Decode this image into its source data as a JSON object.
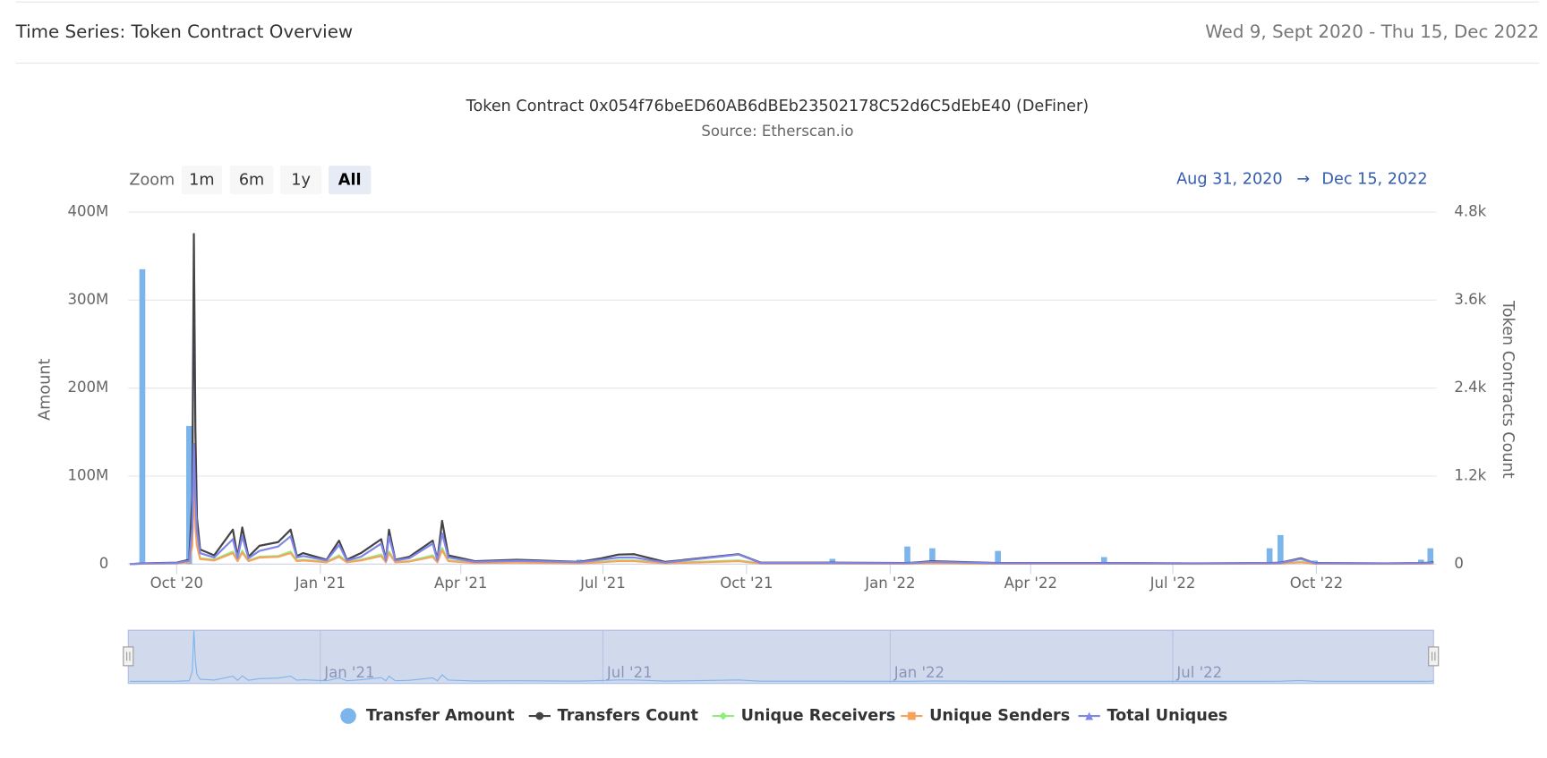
{
  "header": {
    "title": "Time Series: Token Contract Overview",
    "date_range": "Wed 9, Sept 2020 - Thu 15, Dec 2022"
  },
  "zoom": {
    "label": "Zoom",
    "buttons": [
      "1m",
      "6m",
      "1y",
      "All"
    ],
    "selected": "All"
  },
  "range": {
    "from": "Aug 31, 2020",
    "arrow": "→",
    "to": "Dec 15, 2022"
  },
  "navigator": {
    "ticks": [
      {
        "value": "2021-01-01",
        "label": "Jan '21"
      },
      {
        "value": "2021-07-01",
        "label": "Jul '21"
      },
      {
        "value": "2022-01-01",
        "label": "Jan '22"
      },
      {
        "value": "2022-07-01",
        "label": "Jul '22"
      }
    ]
  },
  "chart_data": {
    "type": "bar-line",
    "title": "Token Contract 0x054f76beED60AB6dBEb23502178C52d6C5dEbE40 (DeFiner)",
    "subtitle": "Source: Etherscan.io",
    "y_label": "Amount",
    "y2_label": "Token Contracts Count",
    "grid": true,
    "xlim": [
      "2020-08-31",
      "2022-12-15"
    ],
    "xticks": [
      {
        "value": "2020-10-01",
        "label": "Oct '20"
      },
      {
        "value": "2021-01-01",
        "label": "Jan '21"
      },
      {
        "value": "2021-04-01",
        "label": "Apr '21"
      },
      {
        "value": "2021-07-01",
        "label": "Jul '21"
      },
      {
        "value": "2021-10-01",
        "label": "Oct '21"
      },
      {
        "value": "2022-01-01",
        "label": "Jan '22"
      },
      {
        "value": "2022-04-01",
        "label": "Apr '22"
      },
      {
        "value": "2022-07-01",
        "label": "Jul '22"
      },
      {
        "value": "2022-10-01",
        "label": "Oct '22"
      }
    ],
    "ylim": [
      0,
      400000000
    ],
    "yticks": [
      0,
      {
        "value": 100000000,
        "label": "100M"
      },
      {
        "value": 200000000,
        "label": "200M"
      },
      {
        "value": 300000000,
        "label": "300M"
      },
      {
        "value": 400000000,
        "label": "400M"
      }
    ],
    "y2lim": [
      0,
      4800
    ],
    "y2ticks": [
      0,
      {
        "value": 1200,
        "label": "1.2k"
      },
      {
        "value": 2400,
        "label": "2.4k"
      },
      {
        "value": 3600,
        "label": "3.6k"
      },
      {
        "value": 4800,
        "label": "4.8k"
      }
    ],
    "x": [
      "2020-09-01",
      "2020-09-09",
      "2020-10-01",
      "2020-10-09",
      "2020-10-11",
      "2020-10-12",
      "2020-10-13",
      "2020-10-14",
      "2020-10-16",
      "2020-10-25",
      "2020-11-06",
      "2020-11-09",
      "2020-11-12",
      "2020-11-16",
      "2020-11-23",
      "2020-12-05",
      "2020-12-13",
      "2020-12-17",
      "2020-12-21",
      "2021-01-05",
      "2021-01-13",
      "2021-01-18",
      "2021-01-27",
      "2021-02-09",
      "2021-02-12",
      "2021-02-14",
      "2021-02-18",
      "2021-02-27",
      "2021-03-14",
      "2021-03-17",
      "2021-03-20",
      "2021-03-24",
      "2021-04-10",
      "2021-05-07",
      "2021-06-16",
      "2021-06-30",
      "2021-07-11",
      "2021-07-21",
      "2021-08-10",
      "2021-09-26",
      "2021-10-10",
      "2021-11-25",
      "2022-01-12",
      "2022-01-28",
      "2022-03-11",
      "2022-05-18",
      "2022-07-15",
      "2022-09-01",
      "2022-09-08",
      "2022-09-21",
      "2022-09-30",
      "2022-11-15",
      "2022-12-07",
      "2022-12-13",
      "2022-12-15"
    ],
    "series": [
      {
        "name": "Transfer Amount",
        "type": "bar",
        "axis": "y",
        "color": "#7cb5ec",
        "values": [
          null,
          335000000,
          null,
          157000000,
          null,
          null,
          null,
          null,
          null,
          null,
          null,
          null,
          null,
          null,
          null,
          null,
          null,
          null,
          null,
          null,
          null,
          null,
          null,
          null,
          null,
          null,
          null,
          null,
          null,
          null,
          null,
          null,
          null,
          null,
          5000000,
          null,
          null,
          null,
          null,
          null,
          null,
          6000000,
          20000000,
          18000000,
          15000000,
          8000000,
          null,
          18000000,
          33000000,
          null,
          4000000,
          null,
          5000000,
          18000000,
          null
        ]
      },
      {
        "name": "Transfers Count",
        "type": "line",
        "axis": "y2",
        "color": "#434348",
        "values": [
          0,
          10,
          20,
          60,
          900,
          4500,
          1800,
          630,
          200,
          120,
          470,
          100,
          500,
          100,
          250,
          300,
          470,
          110,
          150,
          60,
          320,
          60,
          150,
          340,
          60,
          470,
          60,
          100,
          320,
          60,
          590,
          120,
          40,
          60,
          30,
          80,
          130,
          135,
          30,
          135,
          20,
          20,
          15,
          40,
          15,
          15,
          10,
          15,
          20,
          80,
          15,
          10,
          15,
          20,
          30
        ]
      },
      {
        "name": "Unique Receivers",
        "type": "line",
        "axis": "y2",
        "color": "#90ed7d",
        "values": [
          0,
          5,
          10,
          30,
          300,
          1300,
          600,
          300,
          80,
          60,
          170,
          50,
          180,
          50,
          100,
          110,
          170,
          50,
          60,
          30,
          120,
          30,
          60,
          130,
          30,
          170,
          30,
          40,
          120,
          30,
          220,
          50,
          20,
          25,
          15,
          30,
          50,
          50,
          15,
          50,
          10,
          10,
          8,
          15,
          8,
          8,
          5,
          8,
          10,
          30,
          8,
          5,
          8,
          10,
          12
        ]
      },
      {
        "name": "Unique Senders",
        "type": "line",
        "axis": "y2",
        "color": "#f7a35c",
        "values": [
          0,
          5,
          10,
          25,
          250,
          1100,
          500,
          250,
          70,
          50,
          150,
          40,
          160,
          40,
          90,
          100,
          150,
          40,
          50,
          25,
          100,
          25,
          50,
          110,
          25,
          150,
          25,
          35,
          100,
          25,
          190,
          40,
          15,
          20,
          10,
          25,
          40,
          40,
          10,
          40,
          8,
          8,
          6,
          12,
          6,
          6,
          4,
          6,
          8,
          25,
          6,
          4,
          6,
          8,
          10
        ]
      },
      {
        "name": "Total Uniques",
        "type": "line",
        "axis": "y2",
        "color": "#8085e9",
        "values": [
          0,
          8,
          15,
          45,
          500,
          1640,
          900,
          450,
          150,
          90,
          340,
          80,
          380,
          80,
          180,
          240,
          380,
          90,
          110,
          50,
          260,
          50,
          100,
          280,
          50,
          380,
          50,
          80,
          280,
          50,
          420,
          90,
          30,
          45,
          25,
          60,
          90,
          90,
          20,
          130,
          15,
          15,
          12,
          30,
          12,
          12,
          8,
          12,
          15,
          70,
          12,
          8,
          12,
          15,
          20
        ]
      }
    ]
  }
}
